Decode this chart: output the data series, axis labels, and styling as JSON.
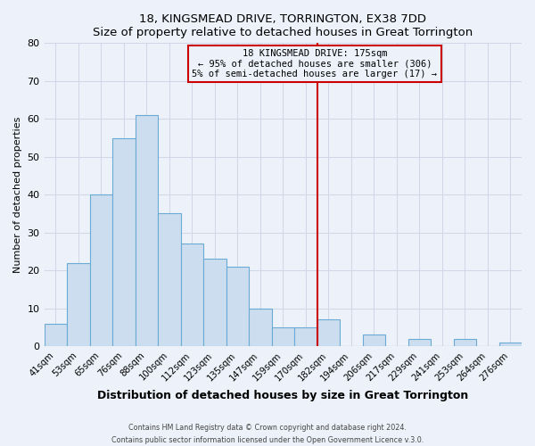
{
  "title": "18, KINGSMEAD DRIVE, TORRINGTON, EX38 7DD",
  "subtitle": "Size of property relative to detached houses in Great Torrington",
  "xlabel": "Distribution of detached houses by size in Great Torrington",
  "ylabel": "Number of detached properties",
  "bar_labels": [
    "41sqm",
    "53sqm",
    "65sqm",
    "76sqm",
    "88sqm",
    "100sqm",
    "112sqm",
    "123sqm",
    "135sqm",
    "147sqm",
    "159sqm",
    "170sqm",
    "182sqm",
    "194sqm",
    "206sqm",
    "217sqm",
    "229sqm",
    "241sqm",
    "253sqm",
    "264sqm",
    "276sqm"
  ],
  "bar_values": [
    6,
    22,
    40,
    55,
    61,
    35,
    27,
    23,
    21,
    10,
    5,
    5,
    7,
    0,
    3,
    0,
    2,
    0,
    2,
    0,
    1
  ],
  "bar_color": "#ccddf0",
  "bar_edge_color": "#6aaad4",
  "ylim": [
    0,
    80
  ],
  "yticks": [
    0,
    10,
    20,
    30,
    40,
    50,
    60,
    70,
    80
  ],
  "vline_x_idx": 11.5,
  "vline_color": "#cc0000",
  "annotation_title": "18 KINGSMEAD DRIVE: 175sqm",
  "annotation_line1": "← 95% of detached houses are smaller (306)",
  "annotation_line2": "5% of semi-detached houses are larger (17) →",
  "annotation_box_color": "#cc0000",
  "footer_line1": "Contains HM Land Registry data © Crown copyright and database right 2024.",
  "footer_line2": "Contains public sector information licensed under the Open Government Licence v.3.0.",
  "background_color": "#edf2fa",
  "grid_color": "#d0d8e8"
}
